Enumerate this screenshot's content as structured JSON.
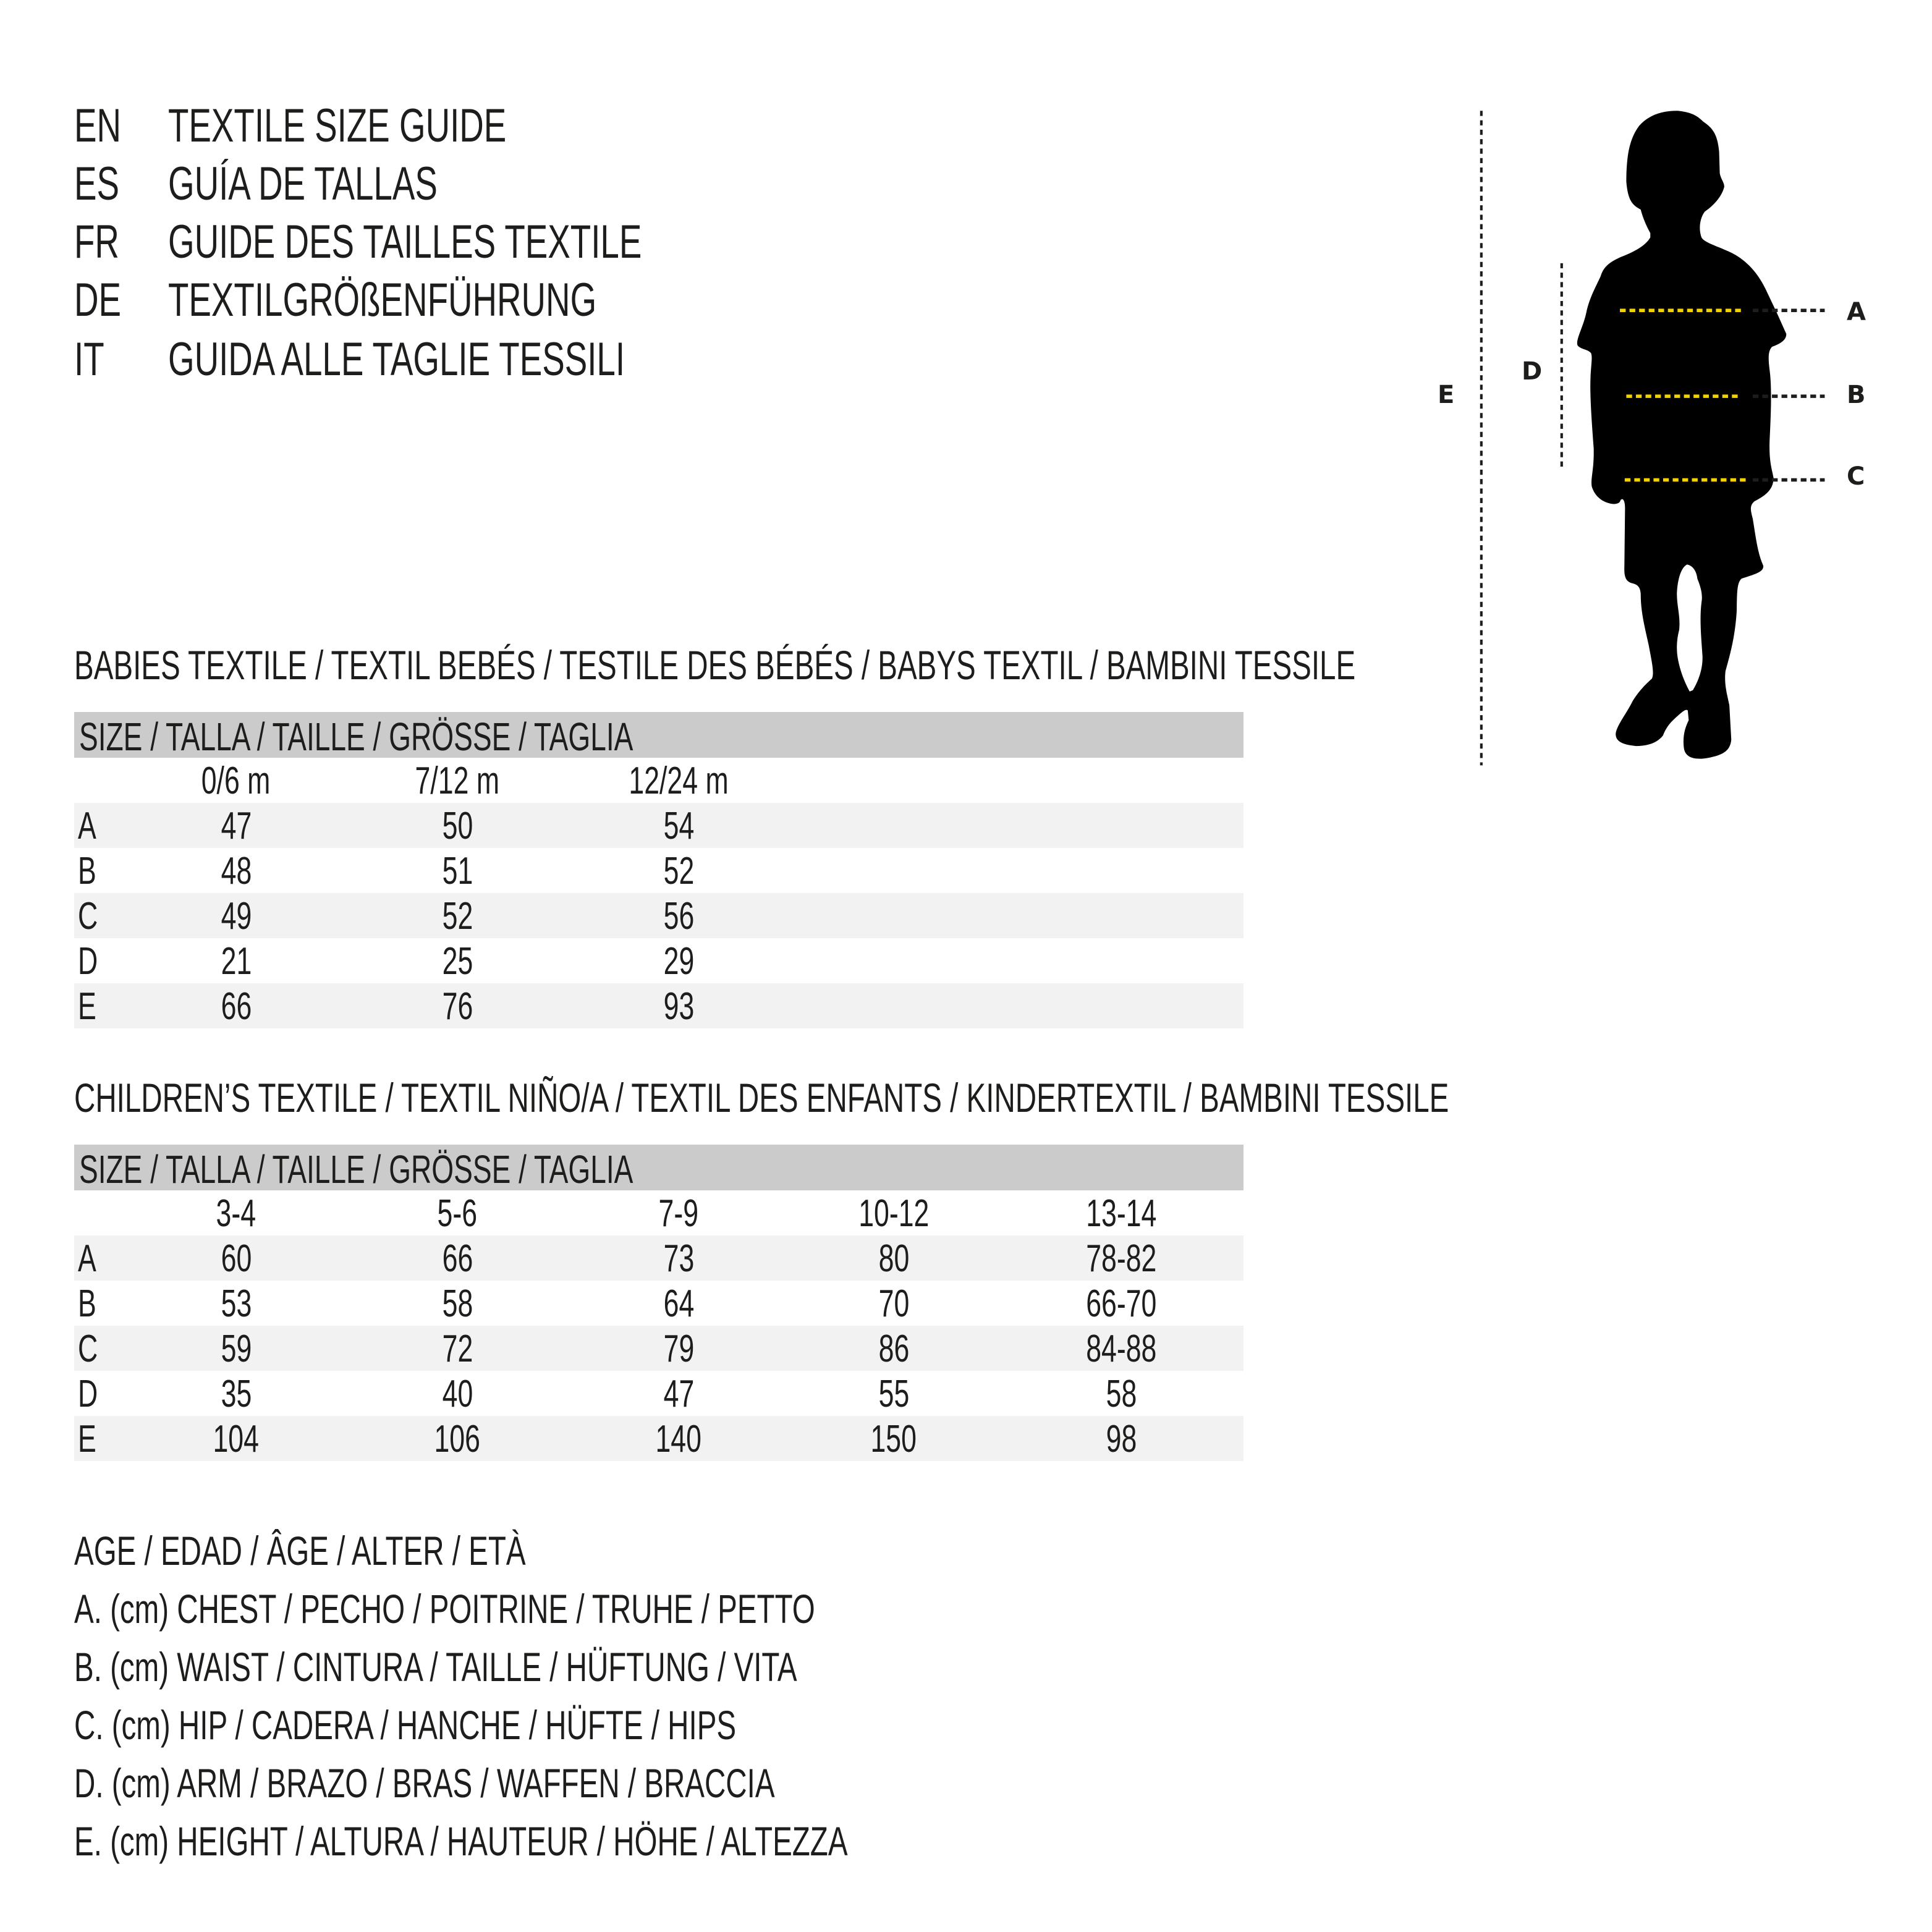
{
  "titles": [
    {
      "code": "EN",
      "text": "TEXTILE SIZE GUIDE"
    },
    {
      "code": "ES",
      "text": "GUÍA DE TALLAS"
    },
    {
      "code": "FR",
      "text": "GUIDE DES TAILLES TEXTILE"
    },
    {
      "code": "DE",
      "text": "TEXTILGRÖßENFÜHRUNG"
    },
    {
      "code": "IT",
      "text": "GUIDA ALLE TAGLIE TESSILI"
    }
  ],
  "figure": {
    "labels": {
      "a": "A",
      "b": "B",
      "c": "C",
      "d": "D",
      "e": "E"
    },
    "colors": {
      "silhouette": "#000000",
      "measure_line": "#f2d200",
      "guide_line": "#1d1d1b"
    }
  },
  "babies": {
    "heading": "BABIES TEXTILE / TEXTIL BEBÉS / TESTILE DES BÉBÉS / BABYS TEXTIL / BAMBINI TESSILE",
    "size_header": "SIZE / TALLA / TAILLE / GRÖSSE / TAGLIA",
    "columns": [
      "0/6 m",
      "7/12 m",
      "12/24 m"
    ],
    "rows": [
      {
        "label": "A",
        "values": [
          "47",
          "50",
          "54"
        ]
      },
      {
        "label": "B",
        "values": [
          "48",
          "51",
          "52"
        ]
      },
      {
        "label": "C",
        "values": [
          "49",
          "52",
          "56"
        ]
      },
      {
        "label": "D",
        "values": [
          "21",
          "25",
          "29"
        ]
      },
      {
        "label": "E",
        "values": [
          "66",
          "76",
          "93"
        ]
      }
    ]
  },
  "children": {
    "heading": "CHILDREN’S TEXTILE / TEXTIL NIÑO/A / TEXTIL DES ENFANTS / KINDERTEXTIL / BAMBINI TESSILE",
    "size_header": "SIZE / TALLA / TAILLE / GRÖSSE / TAGLIA",
    "columns": [
      "3-4",
      "5-6",
      "7-9",
      "10-12",
      "13-14"
    ],
    "rows": [
      {
        "label": "A",
        "values": [
          "60",
          "66",
          "73",
          "80",
          "78-82"
        ]
      },
      {
        "label": "B",
        "values": [
          "53",
          "58",
          "64",
          "70",
          "66-70"
        ]
      },
      {
        "label": "C",
        "values": [
          "59",
          "72",
          "79",
          "86",
          "84-88"
        ]
      },
      {
        "label": "D",
        "values": [
          "35",
          "40",
          "47",
          "55",
          "58"
        ]
      },
      {
        "label": "E",
        "values": [
          "104",
          "106",
          "140",
          "150",
          "98"
        ]
      }
    ]
  },
  "legend": [
    "AGE / EDAD / ÂGE / ALTER / ETÀ",
    "A. (cm) CHEST / PECHO / POITRINE / TRUHE / PETTO",
    "B. (cm) WAIST / CINTURA / TAILLE / HÜFTUNG / VITA",
    "C. (cm) HIP / CADERA / HANCHE / HÜFTE / HIPS",
    "D. (cm) ARM / BRAZO / BRAS / WAFFEN / BRACCIA",
    "E. (cm) HEIGHT / ALTURA / HAUTEUR / HÖHE / ALTEZZA"
  ]
}
